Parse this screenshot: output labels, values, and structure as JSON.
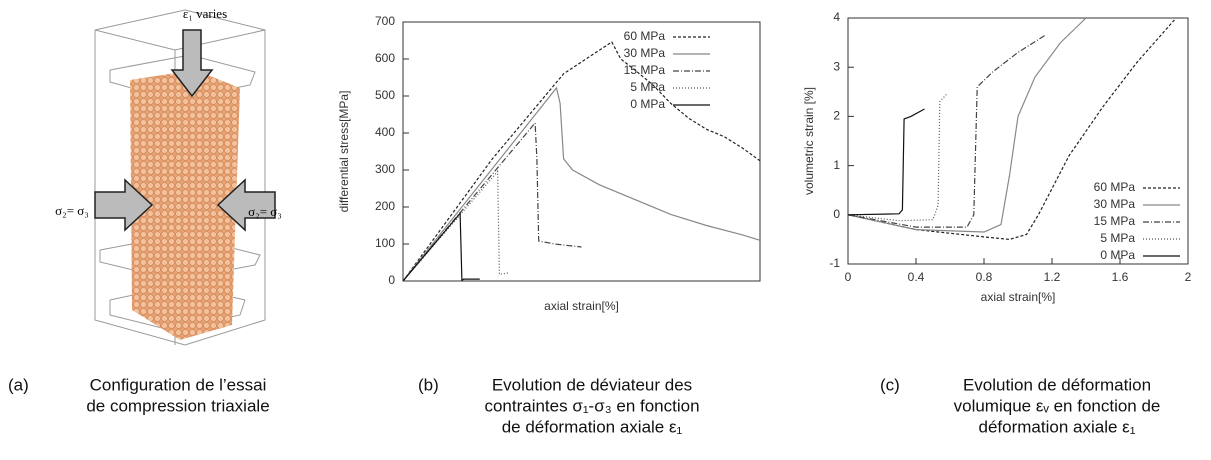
{
  "panel_a": {
    "labels": [
      "ε₁ varies",
      "σ₂= σ₃",
      "σ₂= σ₃"
    ],
    "caption_label": "(a)",
    "caption": [
      "Configuration de l’essai",
      "de compression triaxiale"
    ]
  },
  "chart_data": [
    {
      "type": "line",
      "caption_label": "(b)",
      "caption": [
        "Evolution de déviateur des",
        "contraintes σ₁-σ₃ en fonction",
        "de déformation axiale ε₁"
      ],
      "x_label": "axial strain[%]",
      "y_label": "differential stress[MPa]",
      "xlim": [
        0,
        2
      ],
      "ylim": [
        0,
        700
      ],
      "yticks": [
        0,
        100,
        200,
        300,
        400,
        500,
        600,
        700
      ],
      "grid": false,
      "legend": "top-right",
      "series": [
        {
          "name": "60 MPa",
          "color": "#222",
          "dash": "3,2",
          "x": [
            0,
            0.5,
            0.9,
            1.17,
            1.22,
            1.3,
            1.4,
            1.5,
            1.6,
            1.7,
            1.8,
            1.9,
            2.0
          ],
          "values": [
            0,
            330,
            560,
            646,
            600,
            570,
            530,
            480,
            440,
            410,
            390,
            360,
            325
          ]
        },
        {
          "name": "30 MPa",
          "color": "#888",
          "dash": "none",
          "x": [
            0,
            0.86,
            0.88,
            0.9,
            0.95,
            1.1,
            1.3,
            1.5,
            1.7,
            1.9,
            2.0
          ],
          "values": [
            0,
            522,
            480,
            330,
            300,
            260,
            220,
            180,
            150,
            125,
            110
          ]
        },
        {
          "name": "15 MPa",
          "color": "#444",
          "dash": "6,2,1,2",
          "x": [
            0,
            0.74,
            0.75,
            0.76,
            0.85,
            1.0
          ],
          "values": [
            0,
            427,
            330,
            108,
            100,
            92
          ]
        },
        {
          "name": "5 MPa",
          "color": "#555",
          "dash": "1,2",
          "x": [
            0,
            0.53,
            0.54,
            0.59
          ],
          "values": [
            0,
            296,
            18,
            22
          ]
        },
        {
          "name": "0 MPa",
          "color": "#111",
          "dash": "none",
          "x": [
            0,
            0.32,
            0.33,
            0.34,
            0.43
          ],
          "values": [
            0,
            183,
            2,
            5,
            5
          ]
        }
      ]
    },
    {
      "type": "line",
      "caption_label": "(c)",
      "caption": [
        "Evolution de déformation",
        "volumique εᵥ en fonction de",
        "déformation axiale ε₁"
      ],
      "x_label": "axial strain[%]",
      "y_label": "volumetric strain [%]",
      "xlim": [
        0,
        2
      ],
      "xticks": [
        0,
        0.4,
        0.8,
        1.2,
        1.6,
        2
      ],
      "ylim": [
        -1,
        4
      ],
      "yticks": [
        -1,
        0,
        1,
        2,
        3,
        4
      ],
      "grid": false,
      "legend": "bottom-right",
      "series": [
        {
          "name": "60 MPa",
          "color": "#222",
          "dash": "3,2",
          "x": [
            0,
            0.4,
            0.8,
            0.95,
            1.05,
            1.12,
            1.3,
            1.5,
            1.7,
            1.93
          ],
          "values": [
            0,
            -0.3,
            -0.45,
            -0.5,
            -0.4,
            0,
            1.2,
            2.2,
            3.1,
            4
          ]
        },
        {
          "name": "30 MPa",
          "color": "#888",
          "dash": "none",
          "x": [
            0,
            0.4,
            0.8,
            0.9,
            0.95,
            1.0,
            1.1,
            1.25,
            1.4
          ],
          "values": [
            0,
            -0.3,
            -0.35,
            -0.2,
            0.8,
            2.0,
            2.8,
            3.5,
            4
          ]
        },
        {
          "name": "15 MPa",
          "color": "#444",
          "dash": "6,2,1,2",
          "x": [
            0,
            0.4,
            0.7,
            0.74,
            0.76,
            0.85,
            1.0,
            1.16
          ],
          "values": [
            0,
            -0.25,
            -0.25,
            0,
            2.6,
            2.9,
            3.3,
            3.65
          ]
        },
        {
          "name": "5 MPa",
          "color": "#555",
          "dash": "1,2",
          "x": [
            0,
            0.3,
            0.5,
            0.53,
            0.54,
            0.58
          ],
          "values": [
            0,
            -0.12,
            -0.1,
            0.2,
            2.3,
            2.45
          ]
        },
        {
          "name": "0 MPa",
          "color": "#111",
          "dash": "none",
          "x": [
            0,
            0.3,
            0.32,
            0.33,
            0.37,
            0.45
          ],
          "values": [
            0,
            0.02,
            0.1,
            1.95,
            2.0,
            2.15
          ]
        }
      ]
    }
  ]
}
